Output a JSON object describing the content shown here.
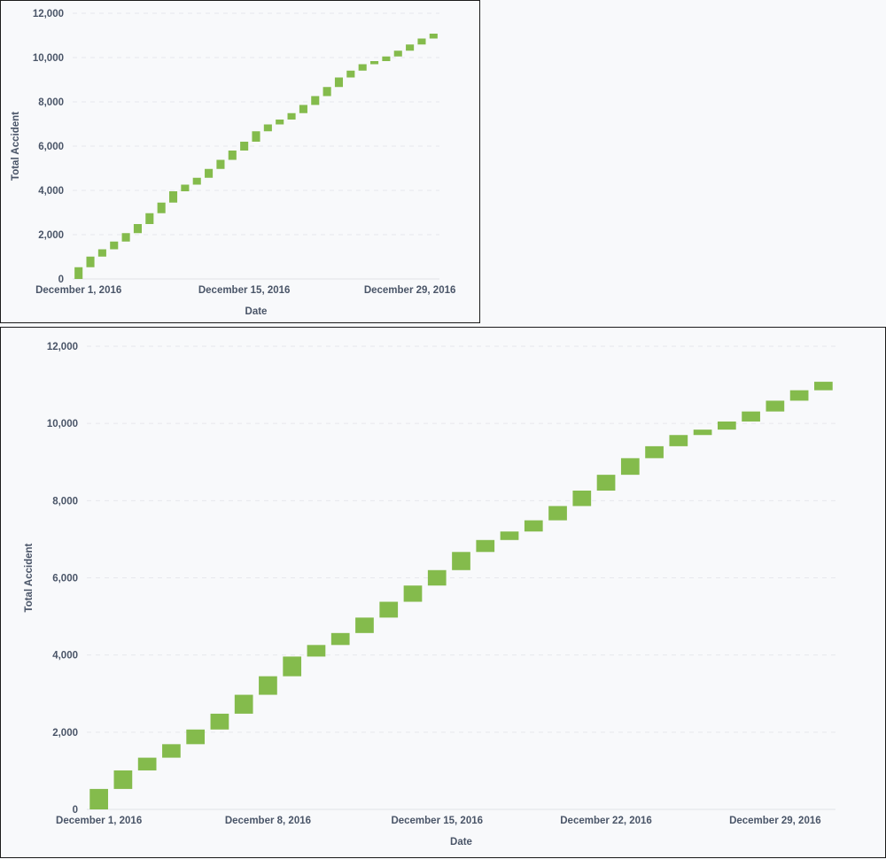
{
  "chart_data": [
    {
      "type": "bar",
      "subtype": "waterfall",
      "xlabel": "Date",
      "ylabel": "Total Accident",
      "ylim": [
        0,
        12000
      ],
      "yticks": [
        "0",
        "2,000",
        "4,000",
        "6,000",
        "8,000",
        "10,000",
        "12,000"
      ],
      "xticks": [
        "December 1, 2016",
        "December 15, 2016",
        "December 29, 2016"
      ],
      "grid": true,
      "color": "#84bb4c",
      "categories": [
        "2016-12-01",
        "2016-12-02",
        "2016-12-03",
        "2016-12-04",
        "2016-12-05",
        "2016-12-06",
        "2016-12-07",
        "2016-12-08",
        "2016-12-09",
        "2016-12-10",
        "2016-12-11",
        "2016-12-12",
        "2016-12-13",
        "2016-12-14",
        "2016-12-15",
        "2016-12-16",
        "2016-12-17",
        "2016-12-18",
        "2016-12-19",
        "2016-12-20",
        "2016-12-21",
        "2016-12-22",
        "2016-12-23",
        "2016-12-24",
        "2016-12-25",
        "2016-12-26",
        "2016-12-27",
        "2016-12-28",
        "2016-12-29",
        "2016-12-30",
        "2016-12-31"
      ],
      "values": [
        530,
        480,
        330,
        350,
        380,
        410,
        490,
        480,
        510,
        300,
        310,
        400,
        410,
        420,
        400,
        470,
        310,
        220,
        290,
        370,
        400,
        410,
        430,
        310,
        290,
        140,
        210,
        260,
        280,
        270,
        220
      ]
    },
    {
      "type": "bar",
      "subtype": "waterfall",
      "xlabel": "Date",
      "ylabel": "Total Accident",
      "ylim": [
        0,
        12000
      ],
      "yticks": [
        "0",
        "2,000",
        "4,000",
        "6,000",
        "8,000",
        "10,000",
        "12,000"
      ],
      "xticks": [
        "December 1, 2016",
        "December 8, 2016",
        "December 15, 2016",
        "December 22, 2016",
        "December 29, 2016"
      ],
      "grid": true,
      "color": "#84bb4c",
      "categories": [
        "2016-12-01",
        "2016-12-02",
        "2016-12-03",
        "2016-12-04",
        "2016-12-05",
        "2016-12-06",
        "2016-12-07",
        "2016-12-08",
        "2016-12-09",
        "2016-12-10",
        "2016-12-11",
        "2016-12-12",
        "2016-12-13",
        "2016-12-14",
        "2016-12-15",
        "2016-12-16",
        "2016-12-17",
        "2016-12-18",
        "2016-12-19",
        "2016-12-20",
        "2016-12-21",
        "2016-12-22",
        "2016-12-23",
        "2016-12-24",
        "2016-12-25",
        "2016-12-26",
        "2016-12-27",
        "2016-12-28",
        "2016-12-29",
        "2016-12-30",
        "2016-12-31"
      ],
      "values": [
        530,
        480,
        330,
        350,
        380,
        410,
        490,
        480,
        510,
        300,
        310,
        400,
        410,
        420,
        400,
        470,
        310,
        220,
        290,
        370,
        400,
        410,
        430,
        310,
        290,
        140,
        210,
        260,
        280,
        270,
        220
      ]
    }
  ]
}
